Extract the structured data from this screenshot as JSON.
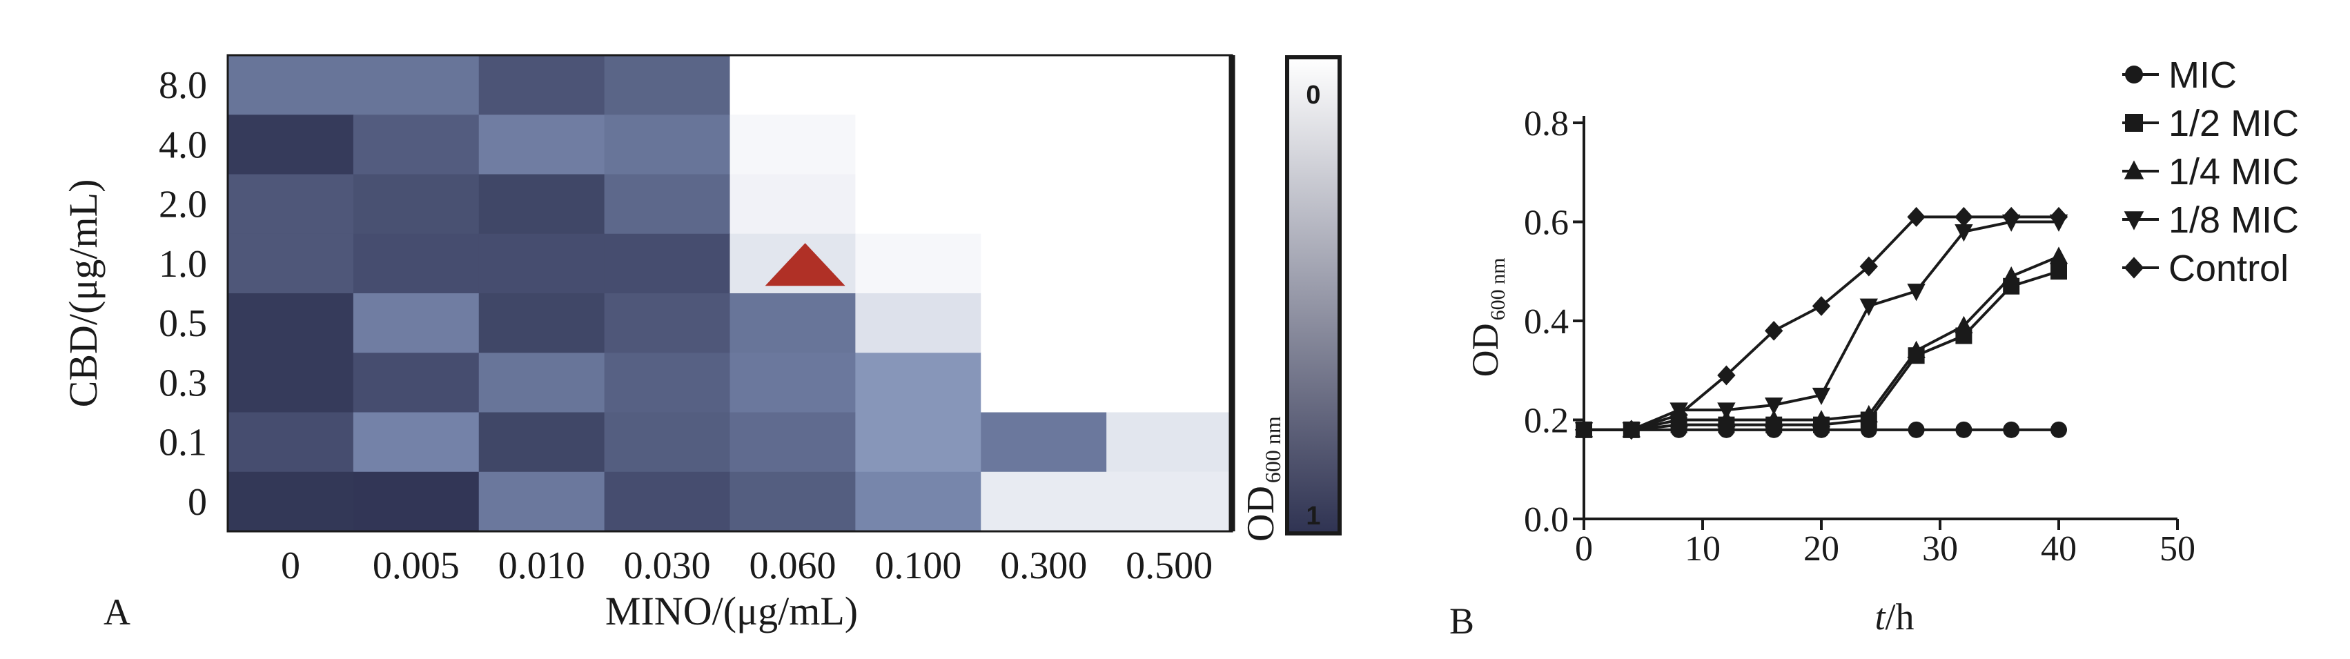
{
  "chart_data": [
    {
      "type": "heatmap",
      "panel_label": "A",
      "xlabel": "MINO/(μg/mL)",
      "ylabel": "CBD/(μg/mL)",
      "x_categories": [
        "0",
        "0.005",
        "0.010",
        "0.030",
        "0.060",
        "0.100",
        "0.300",
        "0.500"
      ],
      "y_categories": [
        "8.0",
        "4.0",
        "2.0",
        "1.0",
        "0.5",
        "0.3",
        "0.1",
        "0"
      ],
      "values": [
        [
          0.6,
          0.6,
          0.8,
          0.7,
          0.0,
          0.0,
          0.0,
          0.0
        ],
        [
          0.95,
          0.75,
          0.55,
          0.6,
          0.03,
          0.0,
          0.0,
          0.0
        ],
        [
          0.78,
          0.82,
          0.88,
          0.68,
          0.05,
          0.0,
          0.0,
          0.0
        ],
        [
          0.78,
          0.84,
          0.84,
          0.84,
          0.1,
          0.03,
          0.0,
          0.0
        ],
        [
          0.95,
          0.55,
          0.88,
          0.78,
          0.6,
          0.12,
          0.0,
          0.0
        ],
        [
          0.95,
          0.84,
          0.6,
          0.72,
          0.58,
          0.42,
          0.0,
          0.0
        ],
        [
          0.84,
          0.52,
          0.88,
          0.74,
          0.66,
          0.42,
          0.58,
          0.1
        ],
        [
          0.97,
          0.98,
          0.58,
          0.84,
          0.74,
          0.5,
          0.08,
          0.08
        ]
      ],
      "marker": {
        "shape": "triangle",
        "row": 3,
        "col": 4,
        "color": "#b03026"
      },
      "colorbar": {
        "label_main": "OD",
        "label_sub": "600 nm",
        "min_label": "0",
        "max_label": "1",
        "low_color": "#ffffff",
        "high_color": "#2f3352"
      }
    },
    {
      "type": "line",
      "panel_label": "B",
      "xlabel_italic": "t",
      "xlabel_rest": "/h",
      "ylabel_main": "OD",
      "ylabel_sub": "600 nm",
      "xlim": [
        0,
        50
      ],
      "ylim": [
        0.0,
        0.8
      ],
      "xticks": [
        0,
        10,
        20,
        30,
        40,
        50
      ],
      "xtick_labels": [
        "0",
        "10",
        "20",
        "30",
        "40",
        "50"
      ],
      "yticks": [
        0.0,
        0.2,
        0.4,
        0.6,
        0.8
      ],
      "ytick_labels": [
        "0.0",
        "0.2",
        "0.4",
        "0.6",
        "0.8"
      ],
      "x": [
        0,
        4,
        8,
        12,
        16,
        20,
        24,
        28,
        32,
        36,
        40
      ],
      "series": [
        {
          "name": "MIC",
          "marker": "circle",
          "values": [
            0.18,
            0.18,
            0.18,
            0.18,
            0.18,
            0.18,
            0.18,
            0.18,
            0.18,
            0.18,
            0.18
          ]
        },
        {
          "name": "1/2 MIC",
          "marker": "square",
          "values": [
            0.18,
            0.18,
            0.19,
            0.19,
            0.19,
            0.19,
            0.2,
            0.33,
            0.37,
            0.47,
            0.5
          ]
        },
        {
          "name": "1/4 MIC",
          "marker": "triangle-up",
          "values": [
            0.18,
            0.18,
            0.2,
            0.2,
            0.2,
            0.2,
            0.21,
            0.34,
            0.39,
            0.49,
            0.53
          ]
        },
        {
          "name": "1/8 MIC",
          "marker": "triangle-down",
          "values": [
            0.18,
            0.18,
            0.22,
            0.22,
            0.23,
            0.25,
            0.43,
            0.46,
            0.58,
            0.6,
            0.6
          ]
        },
        {
          "name": "Control",
          "marker": "diamond",
          "values": [
            0.18,
            0.18,
            0.21,
            0.29,
            0.38,
            0.43,
            0.51,
            0.61,
            0.61,
            0.61,
            0.61
          ]
        }
      ],
      "legend_position": "top-right"
    }
  ]
}
